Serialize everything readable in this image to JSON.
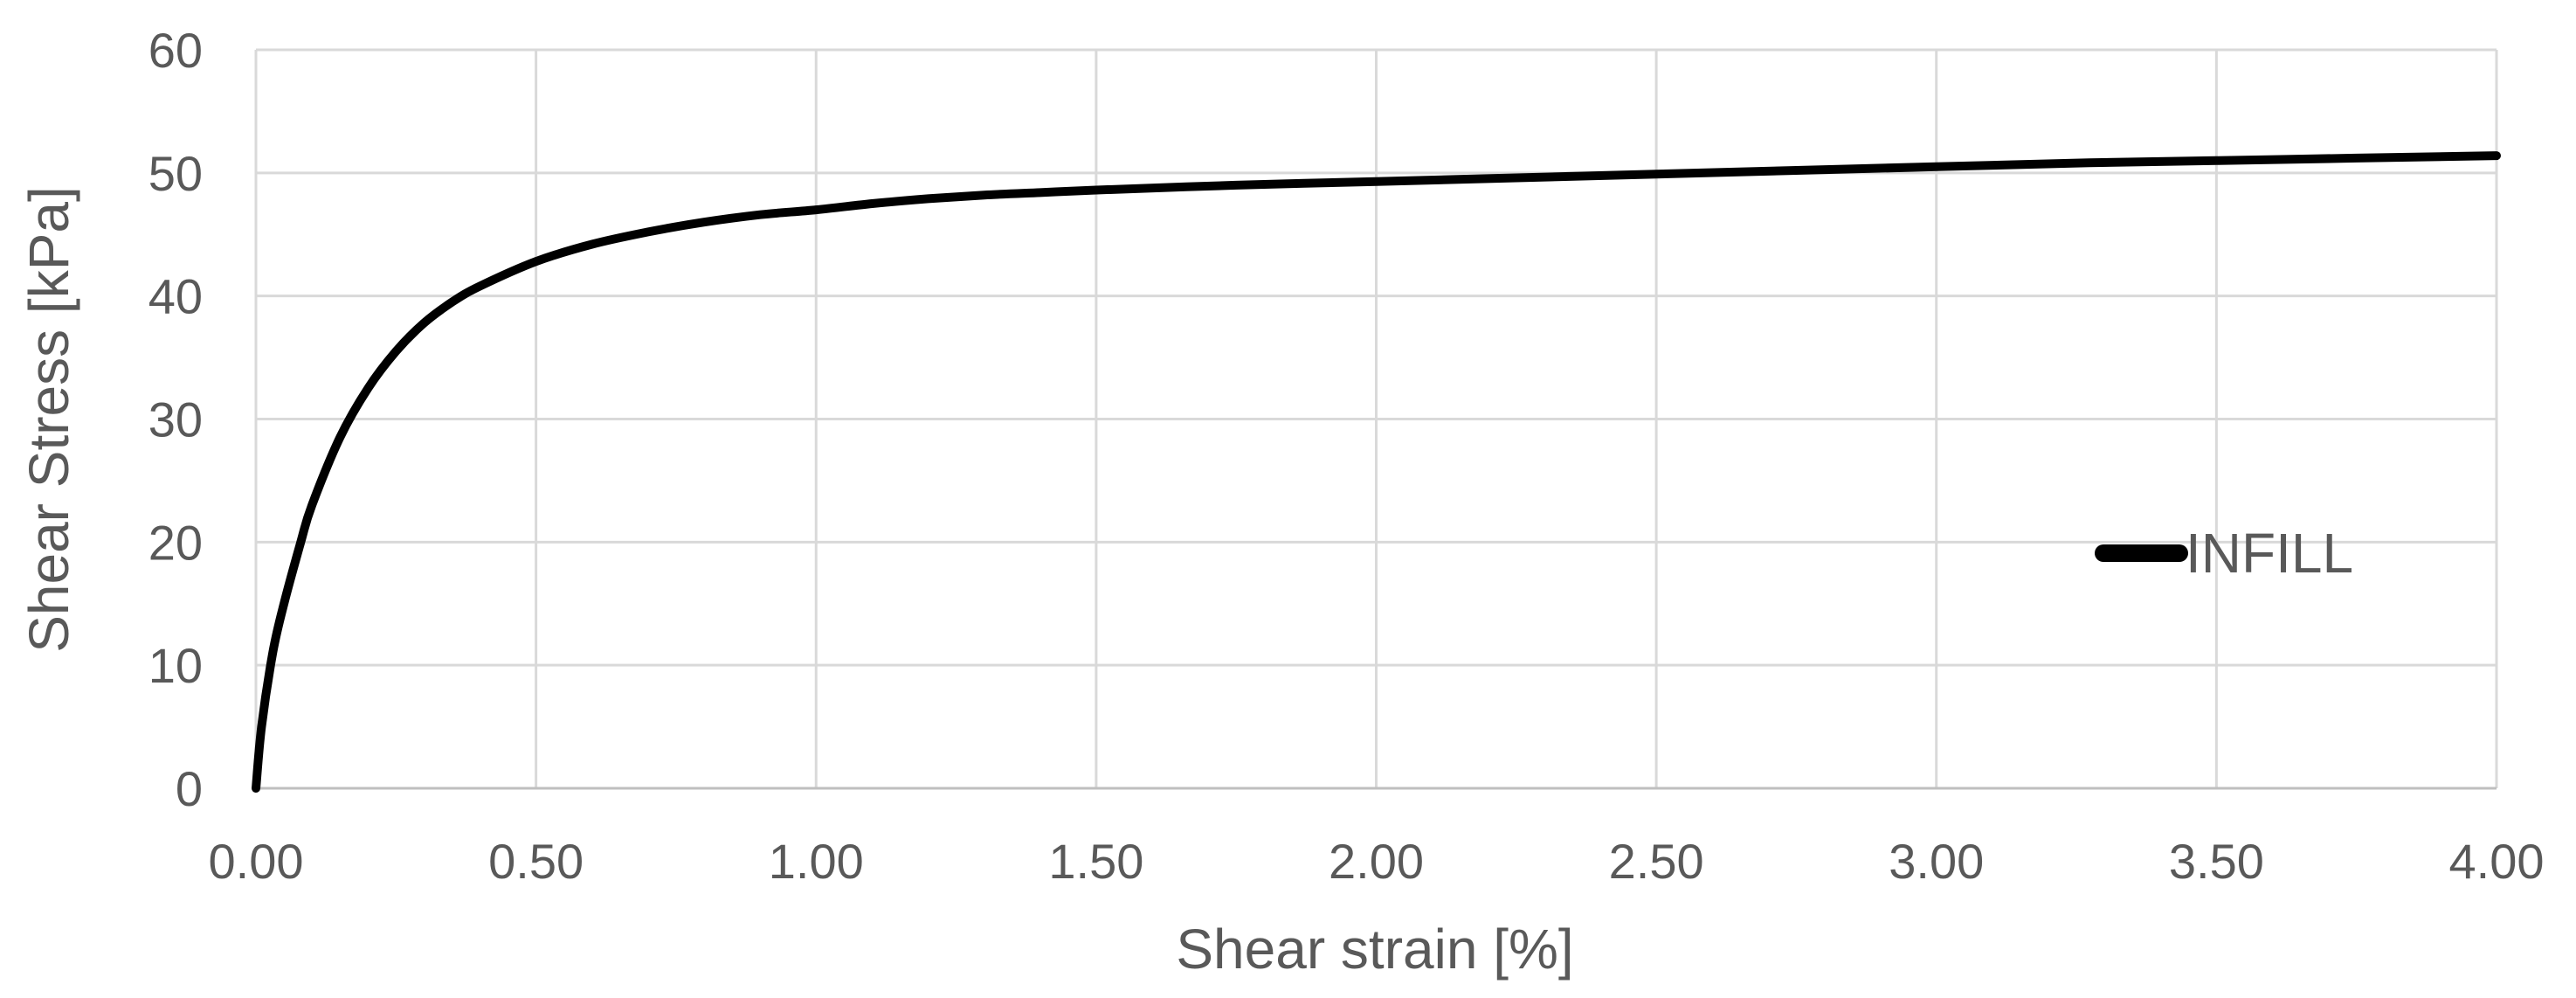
{
  "chart_data": {
    "type": "line",
    "title": "",
    "xlabel": "Shear strain [%]",
    "ylabel": "Shear Stress [kPa]",
    "xlim": [
      0,
      4
    ],
    "ylim": [
      0,
      60
    ],
    "x_ticks": [
      0,
      0.5,
      1,
      1.5,
      2,
      2.5,
      3,
      3.5,
      4
    ],
    "x_tick_labels": [
      "0.00",
      "0.50",
      "1.00",
      "1.50",
      "2.00",
      "2.50",
      "3.00",
      "3.50",
      "4.00"
    ],
    "y_ticks": [
      0,
      10,
      20,
      30,
      40,
      50,
      60
    ],
    "y_tick_labels": [
      "0",
      "10",
      "20",
      "30",
      "40",
      "50",
      "60"
    ],
    "grid": true,
    "legend_position": "right",
    "series": [
      {
        "name": "INFILL",
        "color": "#000000",
        "x": [
          0,
          0.01,
          0.03,
          0.05,
          0.08,
          0.1,
          0.15,
          0.2,
          0.25,
          0.3,
          0.35,
          0.4,
          0.5,
          0.6,
          0.7,
          0.8,
          0.9,
          1.0,
          1.1,
          1.2,
          1.3,
          1.4,
          1.5,
          1.75,
          2.0,
          2.25,
          2.5,
          2.75,
          3.0,
          3.25,
          3.5,
          3.75,
          4.0
        ],
        "y": [
          0,
          5,
          11,
          15,
          20,
          23,
          28.5,
          32.5,
          35.5,
          37.8,
          39.5,
          40.8,
          42.8,
          44.2,
          45.2,
          46.0,
          46.6,
          47.0,
          47.5,
          47.9,
          48.2,
          48.4,
          48.6,
          49.0,
          49.3,
          49.6,
          49.9,
          50.2,
          50.5,
          50.8,
          51.0,
          51.2,
          51.4
        ]
      }
    ]
  }
}
